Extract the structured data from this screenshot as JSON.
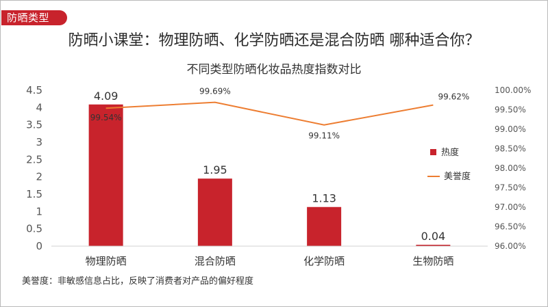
{
  "tag": {
    "label": "防晒类型",
    "color": "#c8232c"
  },
  "headline": "防晒小课堂：物理防晒、化学防晒还是混合防晒  哪种适合你？",
  "footnote": "美誉度：非敏感信息占比，反映了消费者对产品的偏好程度",
  "chart_data": {
    "type": "bar+line",
    "title": "不同类型防晒化妆品热度指数对比",
    "categories": [
      "物理防晒",
      "混合防晒",
      "化学防晒",
      "生物防晒"
    ],
    "series": [
      {
        "name": "热度",
        "type": "bar",
        "axis": "left",
        "color": "#c8232c",
        "values": [
          4.09,
          1.95,
          1.13,
          0.04
        ],
        "labels": [
          "4.09",
          "1.95",
          "1.13",
          "0.04"
        ]
      },
      {
        "name": "美誉度",
        "type": "line",
        "axis": "right",
        "color": "#ed7d31",
        "values": [
          99.54,
          99.69,
          99.11,
          99.62
        ],
        "labels": [
          "99.54%",
          "99.69%",
          "99.11%",
          "99.62%"
        ]
      }
    ],
    "y_left": {
      "min": 0,
      "max": 4.5,
      "step": 0.5,
      "ticks": [
        "0",
        "0.5",
        "1",
        "1.5",
        "2",
        "2.5",
        "3",
        "3.5",
        "4",
        "4.5"
      ]
    },
    "y_right": {
      "min": 96,
      "max": 100,
      "step": 0.5,
      "ticks": [
        "96.00%",
        "96.50%",
        "97.00%",
        "97.50%",
        "98.00%",
        "98.50%",
        "99.00%",
        "99.50%",
        "100.00%"
      ]
    },
    "grid": false,
    "legend": "right"
  }
}
